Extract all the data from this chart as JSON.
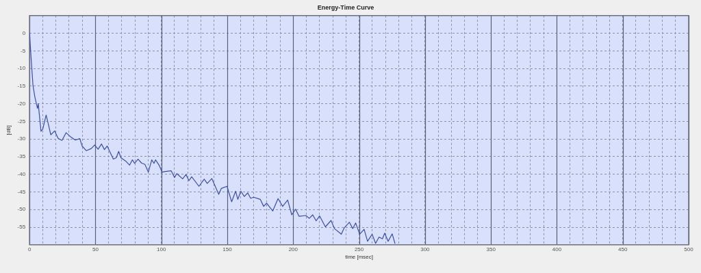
{
  "chart_data": {
    "type": "line",
    "title": "Energy-Time Curve",
    "xlabel": "time [msec]",
    "ylabel": "[dB]",
    "x": [
      0,
      1,
      2.6,
      4,
      5.2,
      6,
      6.6,
      8.7,
      10,
      12.6,
      14.7,
      16.1,
      19,
      21.7,
      24.6,
      27.7,
      31.2,
      34.7,
      38.1,
      39.9,
      43,
      46.8,
      49.4,
      52,
      54.6,
      56.8,
      58.9,
      61,
      63.6,
      65.8,
      67.6,
      69.3,
      72.8,
      75.9,
      78,
      79.7,
      82.3,
      84.9,
      87.5,
      90.1,
      92.7,
      94.4,
      95.6,
      98.4,
      100.5,
      103,
      107.4,
      110,
      111.7,
      116.1,
      118.7,
      120.9,
      123,
      128.5,
      132.5,
      134.8,
      138.3,
      143.5,
      145.5,
      149.8,
      153.3,
      156.3,
      158,
      160.3,
      162.9,
      165.5,
      167.7,
      170.1,
      175,
      177.6,
      179.8,
      184.5,
      188.5,
      192,
      195.8,
      198.9,
      201.8,
      204.4,
      209.6,
      212.2,
      214.8,
      217.4,
      220,
      224.4,
      228.7,
      231.3,
      236.5,
      238.7,
      242.6,
      245.2,
      247.4,
      250.4,
      253.8,
      256.4,
      259.9,
      262.5,
      265.1,
      267.7,
      269.4,
      272,
      275.1,
      277.2
    ],
    "values": [
      0,
      -6,
      -14.8,
      -18,
      -20,
      -21.3,
      -20,
      -27.8,
      -27.2,
      -23.2,
      -26.5,
      -28.8,
      -27.7,
      -29.8,
      -30.4,
      -28.2,
      -29.4,
      -30.3,
      -29.9,
      -32,
      -33.3,
      -32.7,
      -31.7,
      -32.9,
      -31.4,
      -33,
      -32,
      -33.7,
      -35.7,
      -35.3,
      -33.5,
      -35.3,
      -36.2,
      -37.4,
      -35.9,
      -36.9,
      -35.7,
      -36.8,
      -37.2,
      -39.4,
      -35.9,
      -36.9,
      -35.9,
      -37.5,
      -39.4,
      -39.2,
      -39,
      -40.9,
      -39.8,
      -41.3,
      -40.1,
      -41.8,
      -40.7,
      -43.4,
      -41.4,
      -42.6,
      -41.2,
      -45.7,
      -44,
      -43.4,
      -47.8,
      -44.8,
      -47.1,
      -44.8,
      -46.3,
      -45.3,
      -46.8,
      -46.5,
      -47.1,
      -49.1,
      -48.2,
      -50.4,
      -46.9,
      -49.1,
      -47.3,
      -51.5,
      -49.9,
      -51.9,
      -51.7,
      -52.5,
      -51.5,
      -53.2,
      -51.8,
      -54.9,
      -53.1,
      -55.4,
      -57,
      -55.2,
      -53.6,
      -55.4,
      -53.8,
      -57,
      -55.6,
      -59,
      -57,
      -59.6,
      -57.8,
      -58.3,
      -56.7,
      -59,
      -56.9,
      -59.6
    ],
    "color": "#3b4ea8",
    "marker": "none",
    "line_style": "solid",
    "grid": true,
    "legend": false,
    "xlim": [
      0,
      500
    ],
    "xticks": [
      0,
      {
        "value": 10,
        "label": null
      },
      {
        "value": 20,
        "label": null
      },
      {
        "value": 30,
        "label": null
      },
      {
        "value": 40,
        "label": null
      },
      50,
      {
        "value": 60,
        "label": null
      },
      {
        "value": 70,
        "label": null
      },
      {
        "value": 80,
        "label": null
      },
      {
        "value": 90,
        "label": null
      },
      100,
      {
        "value": 110,
        "label": null
      },
      {
        "value": 120,
        "label": null
      },
      {
        "value": 130,
        "label": null
      },
      {
        "value": 140,
        "label": null
      },
      150,
      {
        "value": 160,
        "label": null
      },
      {
        "value": 170,
        "label": null
      },
      {
        "value": 180,
        "label": null
      },
      {
        "value": 190,
        "label": null
      },
      200,
      {
        "value": 210,
        "label": null
      },
      {
        "value": 220,
        "label": null
      },
      {
        "value": 230,
        "label": null
      },
      {
        "value": 240,
        "label": null
      },
      250,
      {
        "value": 260,
        "label": null
      },
      {
        "value": 270,
        "label": null
      },
      {
        "value": 280,
        "label": null
      },
      {
        "value": 290,
        "label": null
      },
      300,
      {
        "value": 310,
        "label": null
      },
      {
        "value": 320,
        "label": null
      },
      {
        "value": 330,
        "label": null
      },
      {
        "value": 340,
        "label": null
      },
      350,
      {
        "value": 360,
        "label": null
      },
      {
        "value": 370,
        "label": null
      },
      {
        "value": 380,
        "label": null
      },
      {
        "value": 390,
        "label": null
      },
      400,
      {
        "value": 410,
        "label": null
      },
      {
        "value": 420,
        "label": null
      },
      {
        "value": 430,
        "label": null
      },
      {
        "value": 440,
        "label": null
      },
      450,
      {
        "value": 460,
        "label": null
      },
      {
        "value": 470,
        "label": null
      },
      {
        "value": 480,
        "label": null
      },
      {
        "value": 490,
        "label": null
      },
      500
    ],
    "ylim": [
      -60,
      5
    ],
    "yticks": [
      0,
      -5,
      -10,
      -15,
      -20,
      -25,
      -30,
      -35,
      -40,
      -45,
      -50,
      -55
    ]
  }
}
